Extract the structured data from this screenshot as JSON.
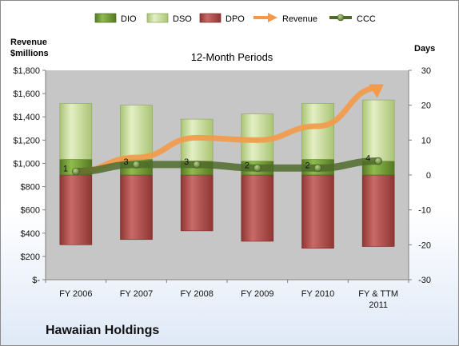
{
  "chart_data": {
    "type": "bar",
    "title": "12-Month Periods",
    "company": "Hawaiian Holdings",
    "left_axis_label": [
      "Revenue",
      "$millions"
    ],
    "right_axis_label": "Days",
    "categories": [
      "FY 2006",
      "FY 2007",
      "FY 2008",
      "FY 2009",
      "FY 2010",
      "FY & TTM 2011"
    ],
    "left_axis": {
      "ylim": [
        0,
        1800
      ],
      "ticks": [
        0,
        200,
        400,
        600,
        800,
        1000,
        1200,
        1400,
        1600,
        1800
      ],
      "tick_labels": [
        "$-",
        "$200",
        "$400",
        "$600",
        "$800",
        "$1,000",
        "$1,200",
        "$1,400",
        "$1,600",
        "$1,800"
      ]
    },
    "right_axis": {
      "ylim": [
        -30,
        30
      ],
      "ticks": [
        -30,
        -20,
        -10,
        0,
        10,
        20,
        30
      ],
      "tick_labels": [
        "-30",
        "-20",
        "-10",
        "0",
        "10",
        "20",
        "30"
      ]
    },
    "legend": {
      "placement": "top",
      "entries": [
        {
          "name": "DIO",
          "kind": "bar",
          "color": "#6d9a2e"
        },
        {
          "name": "DSO",
          "kind": "bar",
          "color": "#c7dc92"
        },
        {
          "name": "DPO",
          "kind": "bar",
          "color": "#b54d4a"
        },
        {
          "name": "Revenue",
          "kind": "arrow",
          "color": "#f29a4a"
        },
        {
          "name": "CCC",
          "kind": "line",
          "color": "#4f6b2a"
        }
      ]
    },
    "series": [
      {
        "name": "DIO",
        "axis": "right",
        "values": [
          4.5,
          4.5,
          4,
          4,
          4.5,
          4
        ]
      },
      {
        "name": "DSO",
        "axis": "right",
        "values": [
          16,
          15.5,
          12,
          13.5,
          16,
          17.5
        ]
      },
      {
        "name": "DPO",
        "axis": "right",
        "values": [
          -20,
          -18.5,
          -16,
          -19,
          -21,
          -20.5
        ]
      },
      {
        "name": "Revenue",
        "axis": "left",
        "values": [
          930,
          1050,
          1220,
          1200,
          1320,
          1650
        ]
      },
      {
        "name": "CCC",
        "axis": "right",
        "values": [
          1,
          3,
          3,
          2,
          2,
          4
        ]
      }
    ],
    "ccc_labels": [
      "1",
      "3",
      "3",
      "2",
      "2",
      "4"
    ],
    "colors": {
      "plot_bg": "#c6c6c6",
      "DIO": "#6d9a2e",
      "DSO": "#c7dc92",
      "DPO": "#b54d4a",
      "Revenue": "#f29a4a",
      "CCC": "#4f6b2a"
    },
    "grid": false
  }
}
